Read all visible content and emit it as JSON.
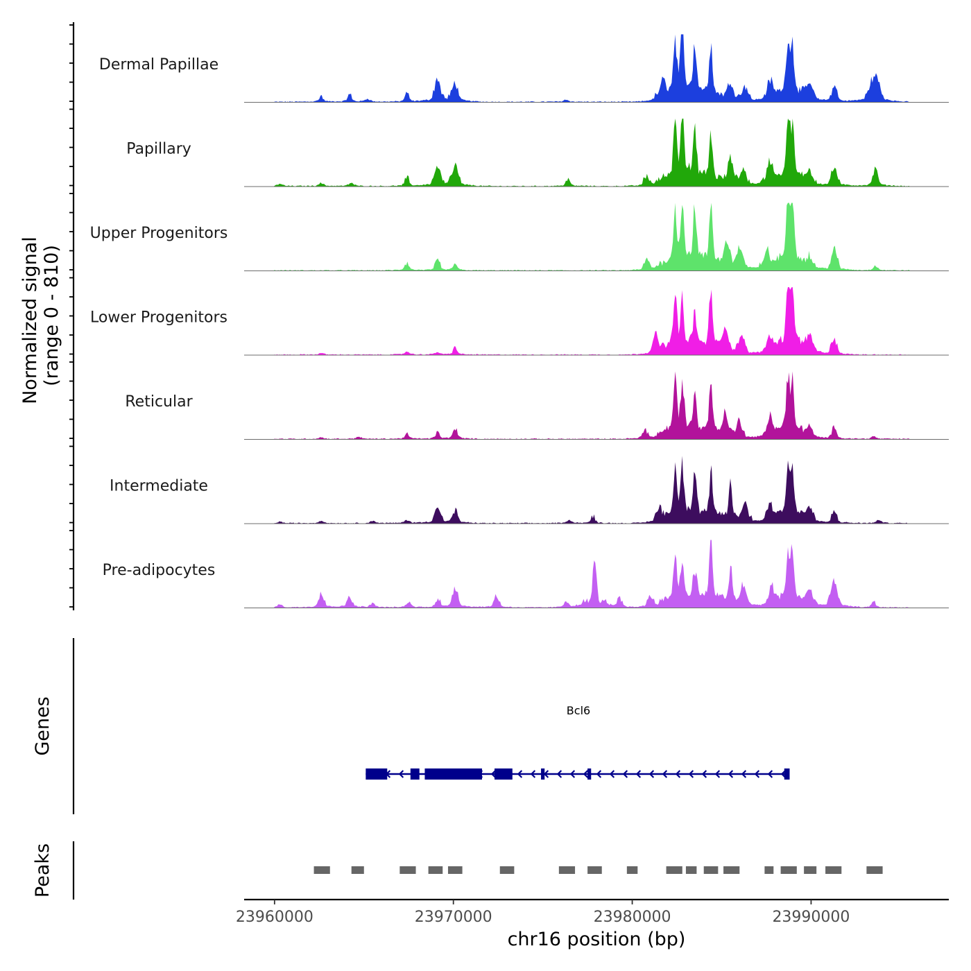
{
  "chart_data": {
    "type": "area",
    "title": "",
    "ylabel_line1": "Normalized signal",
    "ylabel_line2": "(range 0 - 810)",
    "y_range": [
      0,
      810
    ],
    "xlabel": "chr16 position (bp)",
    "xlim": [
      23958300,
      23997700
    ],
    "x_ticks": [
      23960000,
      23970000,
      23980000,
      23990000
    ],
    "x_tick_labels": [
      "23960000",
      "23970000",
      "23980000",
      "23990000"
    ],
    "peak_positions": [
      23962600,
      23964700,
      23967300,
      23969100,
      23970100,
      23972500,
      23976300,
      23977800,
      23980000,
      23982400,
      23983500,
      23984400,
      23985500,
      23987600,
      23988700,
      23989900,
      23991200,
      23993400,
      23994000
    ],
    "tracks": [
      {
        "name": "Dermal Papillae",
        "color": "#1c3fde",
        "peaks": [
          [
            23962600,
            0.05
          ],
          [
            23964200,
            0.06
          ],
          [
            23965200,
            0.04
          ],
          [
            23967400,
            0.07
          ],
          [
            23969100,
            0.28
          ],
          [
            23970100,
            0.22
          ],
          [
            23976300,
            0.03
          ],
          [
            23981700,
            0.18
          ],
          [
            23982400,
            0.75
          ],
          [
            23982800,
            1.0
          ],
          [
            23983500,
            0.66
          ],
          [
            23984400,
            0.7
          ],
          [
            23985500,
            0.22
          ],
          [
            23986300,
            0.18
          ],
          [
            23987700,
            0.22
          ],
          [
            23988700,
            0.78
          ],
          [
            23988950,
            0.72
          ],
          [
            23989900,
            0.2
          ],
          [
            23991300,
            0.18
          ],
          [
            23993400,
            0.25
          ],
          [
            23993700,
            0.25
          ]
        ]
      },
      {
        "name": "Papillary",
        "color": "#21a80a",
        "peaks": [
          [
            23960300,
            0.03
          ],
          [
            23962600,
            0.04
          ],
          [
            23964300,
            0.04
          ],
          [
            23967400,
            0.07
          ],
          [
            23969100,
            0.24
          ],
          [
            23970100,
            0.25
          ],
          [
            23976400,
            0.06
          ],
          [
            23980800,
            0.1
          ],
          [
            23982400,
            0.8
          ],
          [
            23982800,
            1.0
          ],
          [
            23983500,
            0.6
          ],
          [
            23984400,
            0.65
          ],
          [
            23985500,
            0.3
          ],
          [
            23986200,
            0.2
          ],
          [
            23987700,
            0.28
          ],
          [
            23988700,
            0.8
          ],
          [
            23988950,
            0.75
          ],
          [
            23989900,
            0.15
          ],
          [
            23991300,
            0.22
          ],
          [
            23993600,
            0.18
          ]
        ]
      },
      {
        "name": "Upper Progenitors",
        "color": "#5ee36b",
        "peaks": [
          [
            23967400,
            0.07
          ],
          [
            23969100,
            0.08
          ],
          [
            23970100,
            0.06
          ],
          [
            23980800,
            0.1
          ],
          [
            23982400,
            0.8
          ],
          [
            23982800,
            0.75
          ],
          [
            23983500,
            0.7
          ],
          [
            23984400,
            0.78
          ],
          [
            23985300,
            0.35
          ],
          [
            23986000,
            0.28
          ],
          [
            23987500,
            0.22
          ],
          [
            23988700,
            0.8
          ],
          [
            23988950,
            1.0
          ],
          [
            23989900,
            0.1
          ],
          [
            23991300,
            0.25
          ],
          [
            23993600,
            0.05
          ]
        ]
      },
      {
        "name": "Lower Progenitors",
        "color": "#f01ee6",
        "peaks": [
          [
            23962600,
            0.02
          ],
          [
            23967400,
            0.04
          ],
          [
            23969100,
            0.03
          ],
          [
            23970100,
            0.06
          ],
          [
            23981300,
            0.2
          ],
          [
            23982400,
            0.85
          ],
          [
            23982800,
            0.6
          ],
          [
            23983500,
            0.45
          ],
          [
            23984400,
            0.85
          ],
          [
            23985200,
            0.3
          ],
          [
            23986100,
            0.22
          ],
          [
            23987700,
            0.2
          ],
          [
            23988700,
            0.9
          ],
          [
            23988950,
            1.0
          ],
          [
            23989900,
            0.2
          ],
          [
            23991300,
            0.17
          ]
        ]
      },
      {
        "name": "Reticular",
        "color": "#b2139b",
        "peaks": [
          [
            23962600,
            0.02
          ],
          [
            23964700,
            0.03
          ],
          [
            23967400,
            0.05
          ],
          [
            23969100,
            0.05
          ],
          [
            23970100,
            0.1
          ],
          [
            23980700,
            0.1
          ],
          [
            23982400,
            0.8
          ],
          [
            23982800,
            0.7
          ],
          [
            23983500,
            0.45
          ],
          [
            23984400,
            0.7
          ],
          [
            23985200,
            0.28
          ],
          [
            23986000,
            0.2
          ],
          [
            23987700,
            0.25
          ],
          [
            23988700,
            0.75
          ],
          [
            23988950,
            0.72
          ],
          [
            23989900,
            0.1
          ],
          [
            23991300,
            0.12
          ],
          [
            23993500,
            0.03
          ]
        ]
      },
      {
        "name": "Intermediate",
        "color": "#3d0d5e",
        "peaks": [
          [
            23960300,
            0.02
          ],
          [
            23962600,
            0.03
          ],
          [
            23965500,
            0.03
          ],
          [
            23967400,
            0.04
          ],
          [
            23969100,
            0.2
          ],
          [
            23970100,
            0.12
          ],
          [
            23976500,
            0.04
          ],
          [
            23977800,
            0.06
          ],
          [
            23981500,
            0.15
          ],
          [
            23982400,
            0.7
          ],
          [
            23982800,
            0.68
          ],
          [
            23983500,
            0.55
          ],
          [
            23984400,
            0.6
          ],
          [
            23985500,
            0.5
          ],
          [
            23986300,
            0.2
          ],
          [
            23987700,
            0.2
          ],
          [
            23988700,
            0.8
          ],
          [
            23988950,
            0.72
          ],
          [
            23989900,
            0.15
          ],
          [
            23991300,
            0.12
          ],
          [
            23993800,
            0.04
          ]
        ]
      },
      {
        "name": "Pre-adipocytes",
        "color": "#c35ff2",
        "peaks": [
          [
            23960300,
            0.04
          ],
          [
            23962600,
            0.16
          ],
          [
            23964200,
            0.12
          ],
          [
            23965500,
            0.05
          ],
          [
            23967500,
            0.06
          ],
          [
            23969100,
            0.06
          ],
          [
            23970100,
            0.25
          ],
          [
            23972400,
            0.12
          ],
          [
            23976300,
            0.06
          ],
          [
            23977900,
            0.65
          ],
          [
            23979300,
            0.07
          ],
          [
            23981000,
            0.12
          ],
          [
            23982400,
            0.72
          ],
          [
            23982800,
            0.55
          ],
          [
            23983500,
            0.3
          ],
          [
            23984400,
            1.0
          ],
          [
            23985500,
            0.45
          ],
          [
            23986200,
            0.25
          ],
          [
            23987800,
            0.2
          ],
          [
            23988700,
            0.7
          ],
          [
            23988950,
            0.65
          ],
          [
            23989900,
            0.18
          ],
          [
            23991300,
            0.35
          ],
          [
            23993500,
            0.05
          ]
        ]
      }
    ],
    "genes_label": "Genes",
    "gene": {
      "name": "Bcl6",
      "strand": "-",
      "color": "#00008b",
      "start": 23965100,
      "end": 23988800,
      "exons": [
        [
          23965100,
          23966300
        ],
        [
          23967600,
          23968100
        ],
        [
          23968400,
          23971600
        ],
        [
          23972300,
          23973300
        ],
        [
          23974900,
          23975100
        ],
        [
          23977500,
          23977700
        ],
        [
          23988500,
          23988800
        ]
      ]
    },
    "peaks_label": "Peaks",
    "peaks_color": "#666666",
    "peak_regions": [
      [
        23962200,
        23963100
      ],
      [
        23964300,
        23965000
      ],
      [
        23967000,
        23967900
      ],
      [
        23968600,
        23969400
      ],
      [
        23969700,
        23970500
      ],
      [
        23972600,
        23973400
      ],
      [
        23975900,
        23976800
      ],
      [
        23977500,
        23978300
      ],
      [
        23979700,
        23980300
      ],
      [
        23981900,
        23982800
      ],
      [
        23983000,
        23983600
      ],
      [
        23984000,
        23984800
      ],
      [
        23985100,
        23986000
      ],
      [
        23987400,
        23987900
      ],
      [
        23988300,
        23989200
      ],
      [
        23989600,
        23990300
      ],
      [
        23990800,
        23991700
      ],
      [
        23993100,
        23994000
      ]
    ]
  }
}
